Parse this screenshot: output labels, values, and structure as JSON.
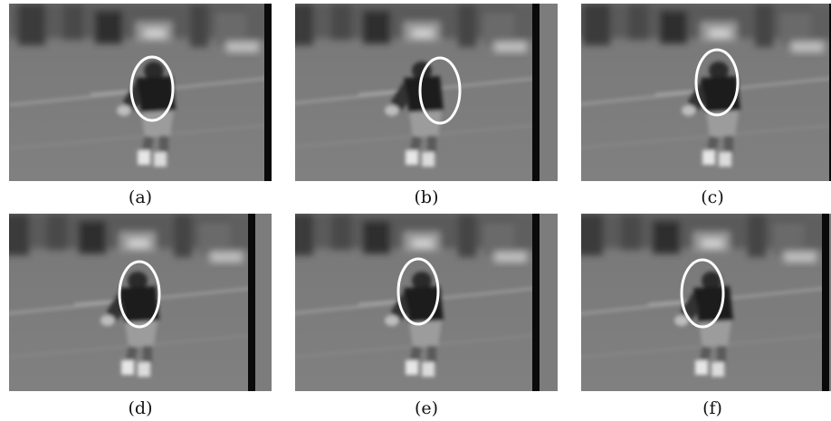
{
  "figure": {
    "panels": [
      {
        "caption": "(a)",
        "ellipse_color": "#ffffff"
      },
      {
        "caption": "(b)",
        "ellipse_color": "#ffffff"
      },
      {
        "caption": "(c)",
        "ellipse_color": "#ffffff"
      },
      {
        "caption": "(d)",
        "ellipse_color": "#ffffff"
      },
      {
        "caption": "(e)",
        "ellipse_color": "#ffffff"
      },
      {
        "caption": "(f)",
        "ellipse_color": "#ffffff"
      }
    ]
  }
}
